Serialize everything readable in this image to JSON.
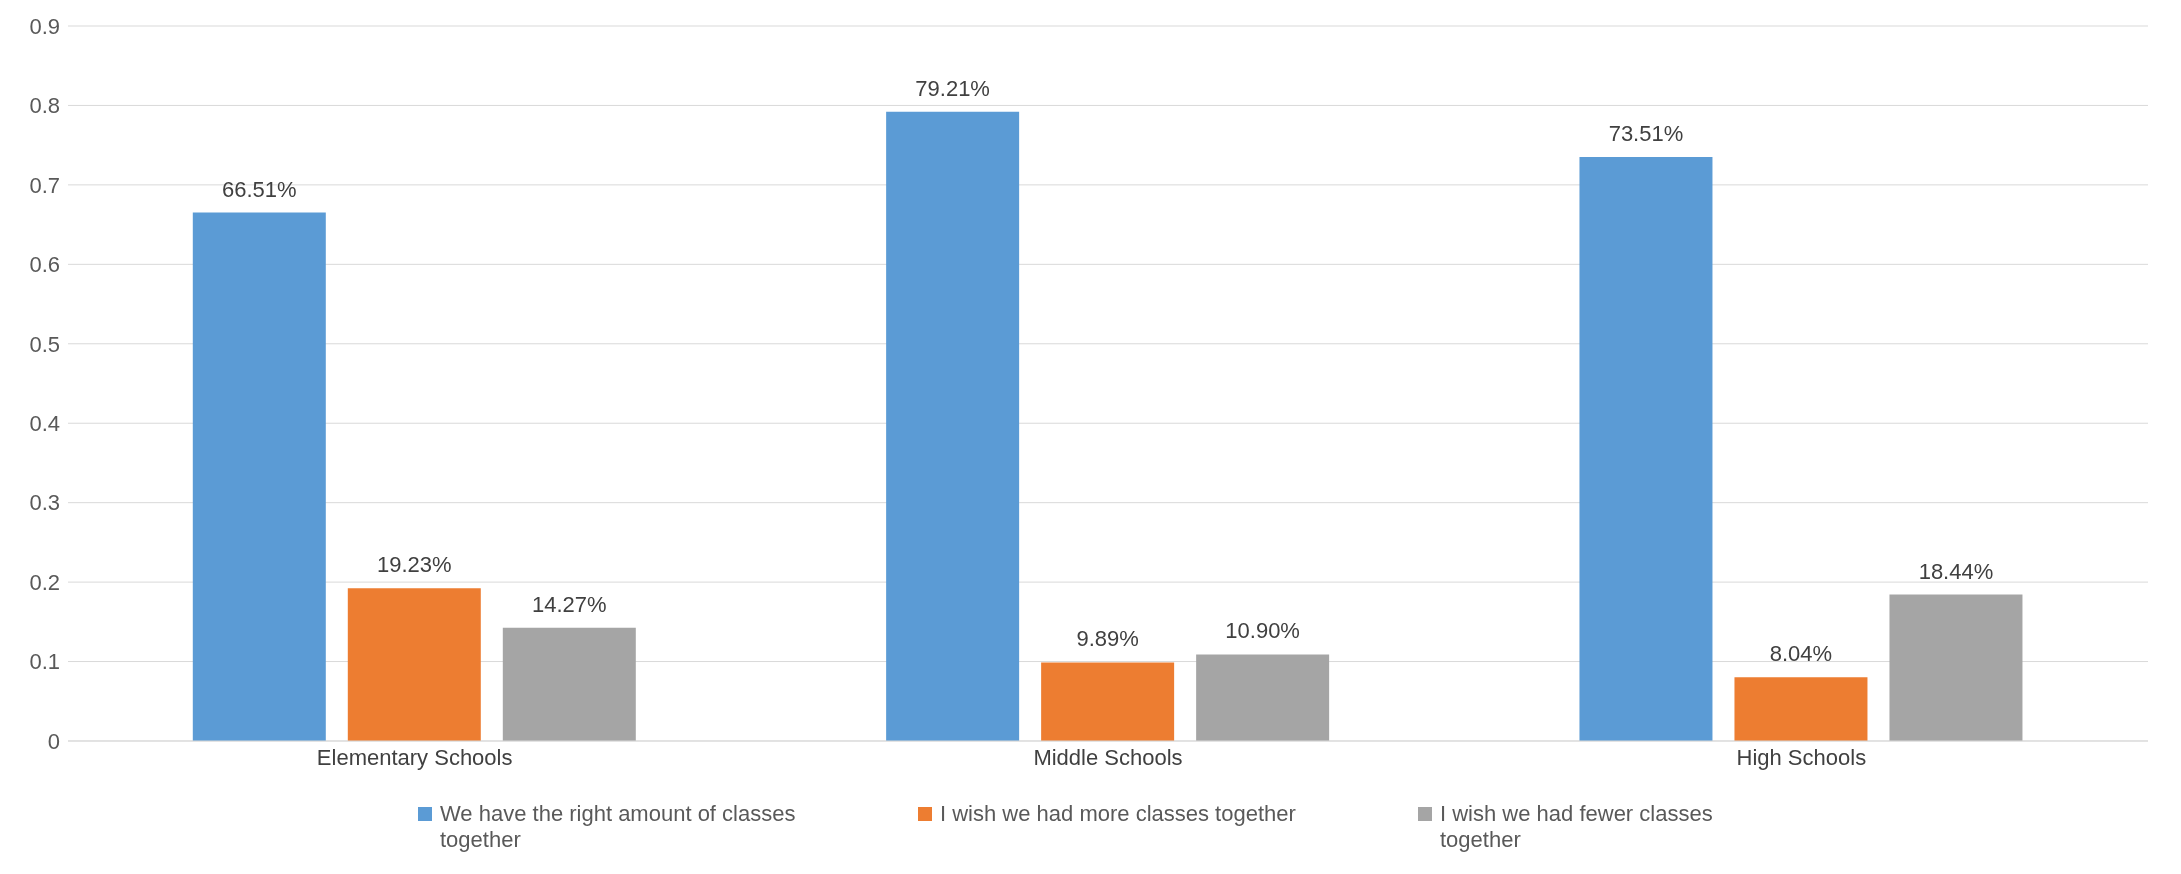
{
  "chart_data": {
    "type": "bar",
    "categories": [
      "Elementary Schools",
      "Middle Schools",
      "High Schools"
    ],
    "series": [
      {
        "name": "We have the right amount of classes together",
        "color": "#5b9bd5",
        "values": [
          0.6651,
          0.7921,
          0.7351
        ],
        "value_labels": [
          "66.51%",
          "79.21%",
          "73.51%"
        ]
      },
      {
        "name": "I wish we had more classes together",
        "color": "#ed7d31",
        "values": [
          0.1923,
          0.0989,
          0.0804
        ],
        "value_labels": [
          "19.23%",
          "9.89%",
          "8.04%"
        ]
      },
      {
        "name": "I wish we had fewer classes together",
        "color": "#a5a5a5",
        "values": [
          0.1427,
          0.109,
          0.1844
        ],
        "value_labels": [
          "14.27%",
          "10.90%",
          "18.44%"
        ]
      }
    ],
    "ylim": [
      0,
      0.9
    ],
    "yticks": [
      0,
      0.1,
      0.2,
      0.3,
      0.4,
      0.5,
      0.6,
      0.7,
      0.8,
      0.9
    ],
    "grid": "y",
    "legend": "bottom"
  }
}
